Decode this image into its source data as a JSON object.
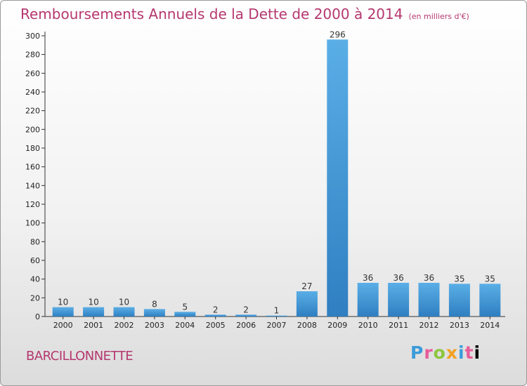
{
  "chart_data": {
    "type": "bar",
    "title": "Remboursements Annuels de la Dette de 2000 à 2014",
    "unit_note": "(en milliers d'€)",
    "categories": [
      "2000",
      "2001",
      "2002",
      "2003",
      "2004",
      "2005",
      "2006",
      "2007",
      "2008",
      "2009",
      "2010",
      "2011",
      "2012",
      "2013",
      "2014"
    ],
    "values": [
      10,
      10,
      10,
      8,
      5,
      2,
      2,
      1,
      27,
      296,
      36,
      36,
      36,
      35,
      35
    ],
    "data_labels": [
      "10",
      "10",
      "10",
      "8",
      "5",
      "2",
      "2",
      "1",
      "27",
      "296",
      "36",
      "36",
      "36",
      "35",
      "35"
    ],
    "ylim": [
      0,
      300
    ],
    "yticks": [
      0,
      20,
      40,
      60,
      80,
      100,
      120,
      140,
      160,
      180,
      200,
      220,
      240,
      260,
      280,
      300
    ],
    "xlabel": "",
    "ylabel": "",
    "grid": false,
    "colors": {
      "bar_light": "#5aaee6",
      "bar_dark": "#2f7fc1",
      "title": "#b5376f"
    }
  },
  "footer": {
    "commune": "BARCILLONNETTE",
    "logo_letters": [
      "P",
      "r",
      "o",
      "x",
      "i",
      "t",
      "i"
    ]
  }
}
